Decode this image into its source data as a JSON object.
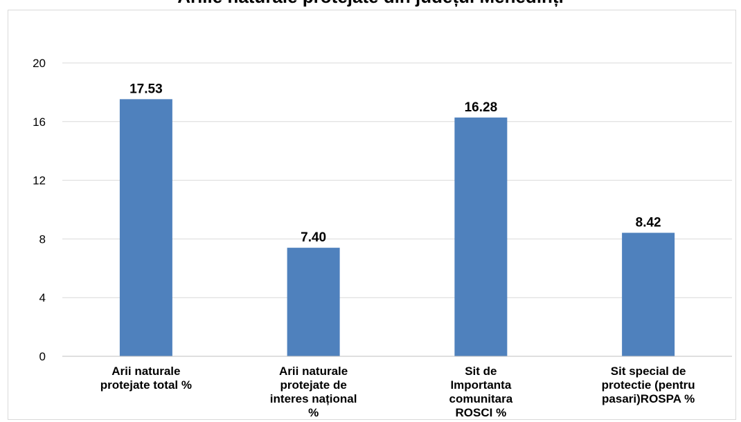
{
  "chart_data": {
    "type": "bar",
    "title": "Ariile naturale protejate din județul Mehedinți",
    "categories": [
      [
        "Arii naturale",
        "protejate total %"
      ],
      [
        "Arii naturale",
        "protejate de",
        "interes național",
        "%"
      ],
      [
        "Sit de",
        "Importanta",
        "comunitara",
        "ROSCI %"
      ],
      [
        "Sit special de",
        "protectie (pentru",
        "pasari)ROSPA %"
      ]
    ],
    "values": [
      17.53,
      7.4,
      16.28,
      8.42
    ],
    "value_labels": [
      "17.53",
      "7.40",
      "16.28",
      "8.42"
    ],
    "ylim": [
      0,
      20
    ],
    "yticks": [
      "0",
      "4",
      "8",
      "12",
      "16",
      "20"
    ],
    "grid": true,
    "legend": "none",
    "colors": {
      "bar": "#4f81bd",
      "grid": "#d9d9d9",
      "text": "#000000"
    }
  }
}
